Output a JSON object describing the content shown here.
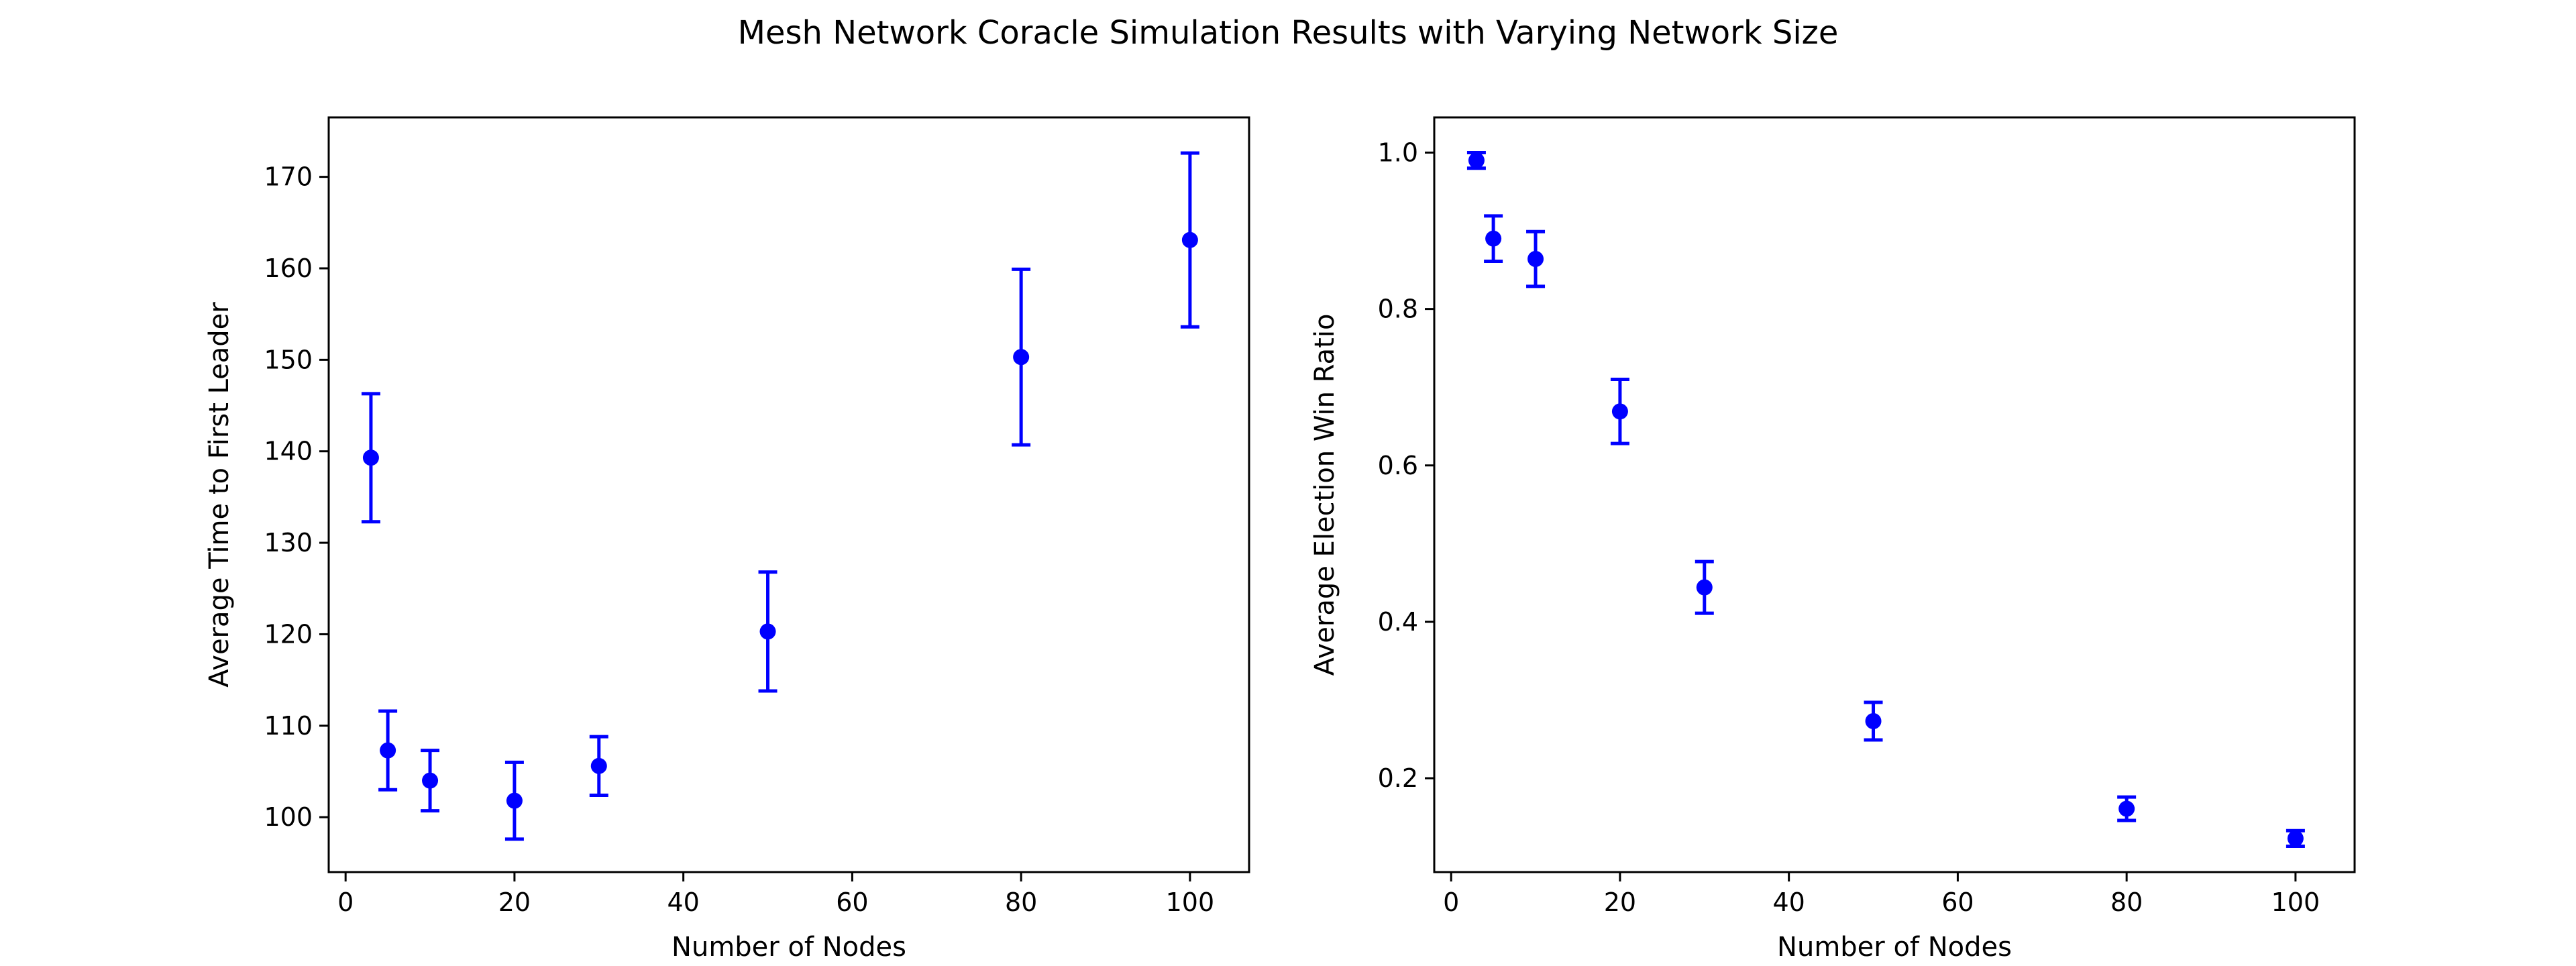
{
  "figure": {
    "title": "Mesh Network Coracle Simulation Results with Varying Network Size"
  },
  "chart_data": [
    {
      "type": "scatter",
      "error_bars": true,
      "color": "#0000ff",
      "title": "",
      "xlabel": "Number of Nodes",
      "ylabel": "Average Time to First Leader",
      "xlim": [
        -2,
        107
      ],
      "ylim": [
        94,
        176.5
      ],
      "xticks": [
        0,
        20,
        40,
        60,
        80,
        100
      ],
      "xtick_labels": [
        "0",
        "20",
        "40",
        "60",
        "80",
        "100"
      ],
      "yticks": [
        100,
        110,
        120,
        130,
        140,
        150,
        160,
        170
      ],
      "ytick_labels": [
        "100",
        "110",
        "120",
        "130",
        "140",
        "150",
        "160",
        "170"
      ],
      "grid": false,
      "x": [
        3,
        5,
        10,
        20,
        30,
        50,
        80,
        100
      ],
      "y": [
        139.3,
        107.3,
        104.0,
        101.8,
        105.6,
        120.3,
        150.3,
        163.1
      ],
      "yerr": [
        7.0,
        4.3,
        3.3,
        4.2,
        3.2,
        6.5,
        9.6,
        9.5
      ]
    },
    {
      "type": "scatter",
      "error_bars": true,
      "color": "#0000ff",
      "title": "",
      "xlabel": "Number of Nodes",
      "ylabel": "Average Election Win Ratio",
      "xlim": [
        -2,
        107
      ],
      "ylim": [
        0.08,
        1.045
      ],
      "xticks": [
        0,
        20,
        40,
        60,
        80,
        100
      ],
      "xtick_labels": [
        "0",
        "20",
        "40",
        "60",
        "80",
        "100"
      ],
      "yticks": [
        0.2,
        0.4,
        0.6,
        0.8,
        1.0
      ],
      "ytick_labels": [
        "0.2",
        "0.4",
        "0.6",
        "0.8",
        "1.0"
      ],
      "grid": false,
      "x": [
        3,
        5,
        10,
        20,
        30,
        50,
        80,
        100
      ],
      "y": [
        0.99,
        0.89,
        0.864,
        0.669,
        0.444,
        0.273,
        0.161,
        0.123
      ],
      "yerr": [
        0.01,
        0.029,
        0.035,
        0.041,
        0.033,
        0.024,
        0.015,
        0.01
      ]
    }
  ]
}
